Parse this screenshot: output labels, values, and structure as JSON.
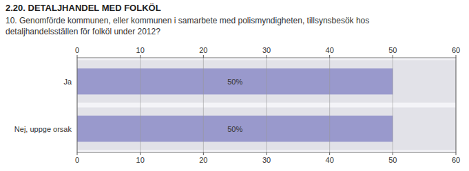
{
  "chart_data": {
    "type": "bar",
    "orientation": "horizontal",
    "title": "2.20. DETALJHANDEL MED FOLKÖL",
    "subtitle": "10. Genomförde kommunen, eller kommunen i samarbete med polismyndigheten, tillsynsbesök hos\ndetaljhandelsställen för folköl under 2012?",
    "categories": [
      "Nej, uppge orsak",
      "Ja"
    ],
    "values": [
      50,
      50
    ],
    "value_labels": [
      "50%",
      "50%"
    ],
    "data_labels": true,
    "color": "#9999cc",
    "xlim": [
      0,
      60
    ],
    "xticks": [
      0,
      10,
      20,
      30,
      40,
      50,
      60
    ],
    "grid": true
  }
}
